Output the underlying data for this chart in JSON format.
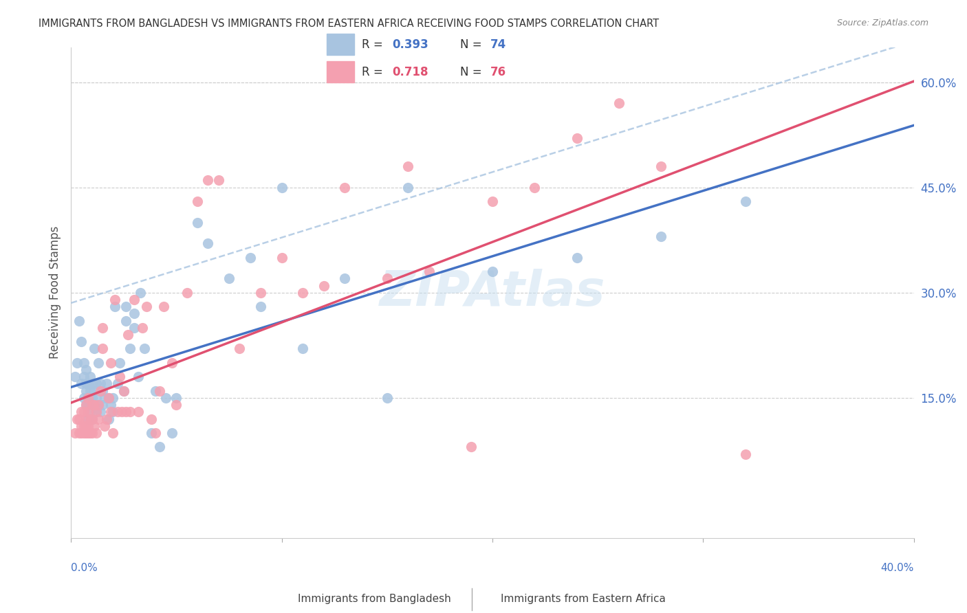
{
  "title": "IMMIGRANTS FROM BANGLADESH VS IMMIGRANTS FROM EASTERN AFRICA RECEIVING FOOD STAMPS CORRELATION CHART",
  "source": "Source: ZipAtlas.com",
  "ylabel": "Receiving Food Stamps",
  "right_ytick_labels": [
    "60.0%",
    "45.0%",
    "30.0%",
    "15.0%"
  ],
  "right_ytick_values": [
    0.6,
    0.45,
    0.3,
    0.15
  ],
  "watermark": "ZIPAtlas",
  "R_bangladesh": 0.393,
  "N_bangladesh": 74,
  "R_eastern_africa": 0.718,
  "N_eastern_africa": 76,
  "bangladesh_color": "#a8c4e0",
  "eastern_africa_color": "#f4a0b0",
  "bangladesh_line_color": "#4472c4",
  "eastern_africa_line_color": "#e05070",
  "dashed_line_color": "#a8c4e0",
  "title_color": "#333333",
  "source_color": "#888888",
  "axis_label_color": "#4472c4",
  "grid_color": "#cccccc",
  "background_color": "#ffffff",
  "xlim": [
    0.0,
    0.4
  ],
  "ylim": [
    -0.05,
    0.65
  ],
  "bangladesh_x": [
    0.002,
    0.003,
    0.004,
    0.005,
    0.005,
    0.006,
    0.006,
    0.006,
    0.007,
    0.007,
    0.007,
    0.007,
    0.008,
    0.008,
    0.008,
    0.008,
    0.009,
    0.009,
    0.009,
    0.009,
    0.01,
    0.01,
    0.01,
    0.011,
    0.011,
    0.011,
    0.012,
    0.012,
    0.012,
    0.013,
    0.013,
    0.014,
    0.014,
    0.015,
    0.015,
    0.016,
    0.017,
    0.018,
    0.018,
    0.019,
    0.02,
    0.02,
    0.021,
    0.022,
    0.023,
    0.025,
    0.026,
    0.026,
    0.028,
    0.03,
    0.03,
    0.032,
    0.033,
    0.035,
    0.038,
    0.04,
    0.042,
    0.045,
    0.048,
    0.05,
    0.06,
    0.065,
    0.075,
    0.085,
    0.09,
    0.1,
    0.11,
    0.13,
    0.15,
    0.16,
    0.2,
    0.24,
    0.28,
    0.32
  ],
  "bangladesh_y": [
    0.18,
    0.2,
    0.26,
    0.17,
    0.23,
    0.15,
    0.18,
    0.2,
    0.14,
    0.16,
    0.17,
    0.19,
    0.12,
    0.14,
    0.15,
    0.17,
    0.13,
    0.15,
    0.16,
    0.18,
    0.12,
    0.15,
    0.17,
    0.14,
    0.16,
    0.22,
    0.13,
    0.15,
    0.17,
    0.14,
    0.2,
    0.13,
    0.17,
    0.14,
    0.16,
    0.15,
    0.17,
    0.12,
    0.15,
    0.14,
    0.13,
    0.15,
    0.28,
    0.17,
    0.2,
    0.16,
    0.26,
    0.28,
    0.22,
    0.25,
    0.27,
    0.18,
    0.3,
    0.22,
    0.1,
    0.16,
    0.08,
    0.15,
    0.1,
    0.15,
    0.4,
    0.37,
    0.32,
    0.35,
    0.28,
    0.45,
    0.22,
    0.32,
    0.15,
    0.45,
    0.33,
    0.35,
    0.38,
    0.43
  ],
  "eastern_africa_x": [
    0.002,
    0.003,
    0.004,
    0.004,
    0.005,
    0.005,
    0.005,
    0.006,
    0.006,
    0.006,
    0.007,
    0.007,
    0.007,
    0.007,
    0.008,
    0.008,
    0.008,
    0.008,
    0.009,
    0.009,
    0.01,
    0.01,
    0.01,
    0.011,
    0.011,
    0.012,
    0.012,
    0.013,
    0.013,
    0.014,
    0.015,
    0.015,
    0.016,
    0.017,
    0.018,
    0.019,
    0.019,
    0.02,
    0.021,
    0.022,
    0.023,
    0.024,
    0.025,
    0.026,
    0.027,
    0.028,
    0.03,
    0.032,
    0.034,
    0.036,
    0.038,
    0.04,
    0.042,
    0.044,
    0.048,
    0.05,
    0.055,
    0.06,
    0.065,
    0.07,
    0.08,
    0.09,
    0.1,
    0.11,
    0.12,
    0.13,
    0.15,
    0.16,
    0.17,
    0.19,
    0.2,
    0.22,
    0.24,
    0.26,
    0.28,
    0.32
  ],
  "eastern_africa_y": [
    0.1,
    0.12,
    0.1,
    0.12,
    0.1,
    0.11,
    0.13,
    0.1,
    0.11,
    0.13,
    0.1,
    0.11,
    0.12,
    0.14,
    0.1,
    0.11,
    0.13,
    0.15,
    0.1,
    0.12,
    0.1,
    0.12,
    0.14,
    0.11,
    0.14,
    0.1,
    0.13,
    0.12,
    0.14,
    0.16,
    0.22,
    0.25,
    0.11,
    0.12,
    0.15,
    0.13,
    0.2,
    0.1,
    0.29,
    0.13,
    0.18,
    0.13,
    0.16,
    0.13,
    0.24,
    0.13,
    0.29,
    0.13,
    0.25,
    0.28,
    0.12,
    0.1,
    0.16,
    0.28,
    0.2,
    0.14,
    0.3,
    0.43,
    0.46,
    0.46,
    0.22,
    0.3,
    0.35,
    0.3,
    0.31,
    0.45,
    0.32,
    0.48,
    0.33,
    0.08,
    0.43,
    0.45,
    0.52,
    0.57,
    0.48,
    0.07
  ]
}
